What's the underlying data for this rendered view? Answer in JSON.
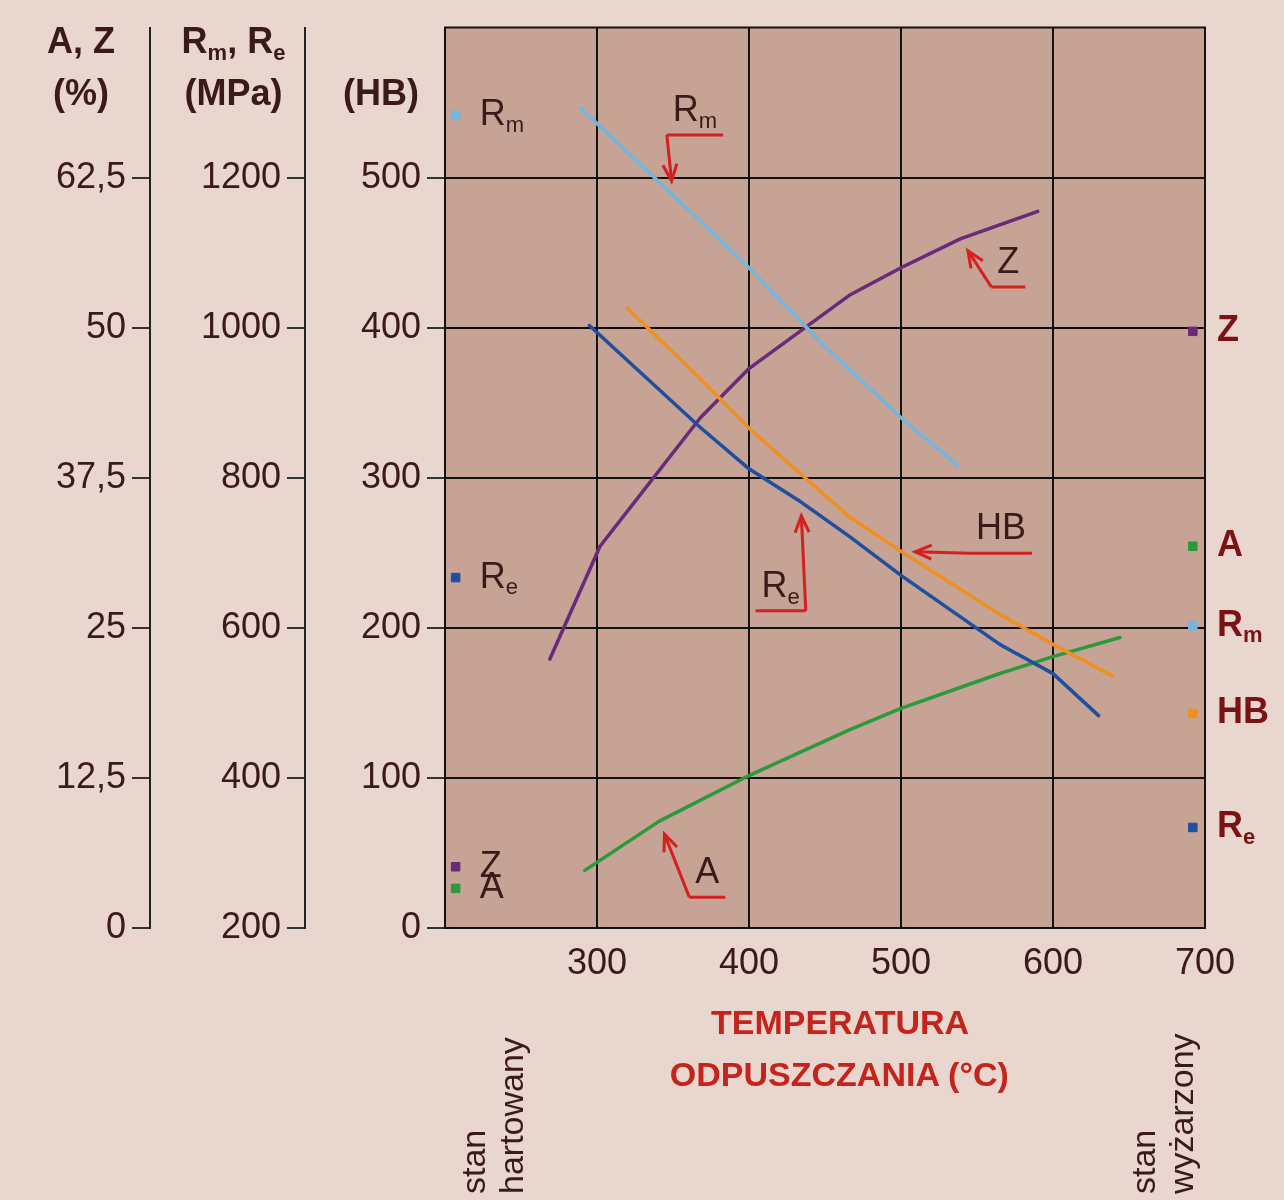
{
  "chart_data": {
    "type": "line",
    "xlabel": "TEMPERATURA ODPUSZCZANIA (°C)",
    "ylabel": "(HB)",
    "y2label": "R$_{m}$, R$_{e}$ (MPa)",
    "y3label": "A, Z (%)",
    "xlim": [
      200,
      700
    ],
    "xticks": [
      300,
      400,
      500,
      600,
      700
    ],
    "ylim": [
      0,
      600
    ],
    "yticks": [
      0,
      100,
      200,
      300,
      400,
      500
    ],
    "y2lim": [
      200,
      1400
    ],
    "y2ticks": [
      200,
      400,
      600,
      800,
      1000,
      1200
    ],
    "y3lim": [
      0,
      75
    ],
    "y3ticks": [
      0,
      {
        "value": 12.5,
        "label": "12,5"
      },
      25,
      {
        "value": 37.5,
        "label": "37,5"
      },
      50,
      {
        "value": 62.5,
        "label": "62,5"
      }
    ],
    "grid": true,
    "legend": "right",
    "marker": "none",
    "series": [
      {
        "name": "R$_{m}$",
        "color": "#72b6e2",
        "axis": "y2",
        "x": [
          289,
          350,
          400,
          450,
          500,
          537
        ],
        "values": [
          1293,
          1177,
          1080,
          975,
          880,
          817
        ]
      },
      {
        "name": "R$_{e}$",
        "color": "#1f4f9e",
        "axis": "y2",
        "x": [
          295,
          368,
          400,
          434,
          466,
          500,
          565,
          600,
          630
        ],
        "values": [
          1003,
          867,
          812,
          768,
          722,
          670,
          578,
          539,
          483
        ]
      },
      {
        "name": "HB",
        "color": "#f0901e",
        "x": [
          320,
          368,
          400,
          466,
          500,
          565,
          600,
          639
        ],
        "values": [
          413,
          366,
          333,
          274,
          251,
          209,
          189,
          168
        ]
      },
      {
        "name": "Z",
        "color": "#6a2a7a",
        "axis": "y3",
        "x": [
          269,
          302,
          368,
          400,
          466,
          500,
          539,
          590
        ],
        "values": [
          22.4,
          31.8,
          42.5,
          46.6,
          52.7,
          55,
          57.4,
          59.7
        ]
      },
      {
        "name": "A",
        "color": "#2a9a3a",
        "axis": "y3",
        "x": [
          292,
          341,
          400,
          466,
          500,
          565,
          600,
          644
        ],
        "values": [
          4.8,
          8.9,
          12.7,
          16.5,
          18.3,
          21.2,
          22.6,
          24.2
        ]
      },
      {
        "type": "scatter",
        "marker": "square",
        "name": "R$_{m}$",
        "color": "#72b6e2",
        "axis": "y2",
        "x": [
          207,
          692
        ],
        "values": [
          1283,
          603
        ]
      },
      {
        "type": "scatter",
        "marker": "square",
        "name": "R$_{e}$",
        "color": "#1f4f9e",
        "axis": "y2",
        "x": [
          207,
          692
        ],
        "values": [
          667,
          334
        ]
      },
      {
        "type": "scatter",
        "marker": "square",
        "name": "HB",
        "color": "#f0901e",
        "x": [
          692
        ],
        "values": [
          143
        ]
      },
      {
        "type": "scatter",
        "marker": "square",
        "name": "Z",
        "color": "#6a2a7a",
        "axis": "y3",
        "x": [
          207,
          692
        ],
        "values": [
          5.1,
          49.7
        ]
      },
      {
        "type": "scatter",
        "marker": "square",
        "name": "A",
        "color": "#2a9a3a",
        "axis": "y3",
        "x": [
          207,
          692
        ],
        "values": [
          3.3,
          31.8
        ]
      }
    ],
    "annotations": [
      "stan hartowany",
      "stan wyżarzony"
    ]
  }
}
